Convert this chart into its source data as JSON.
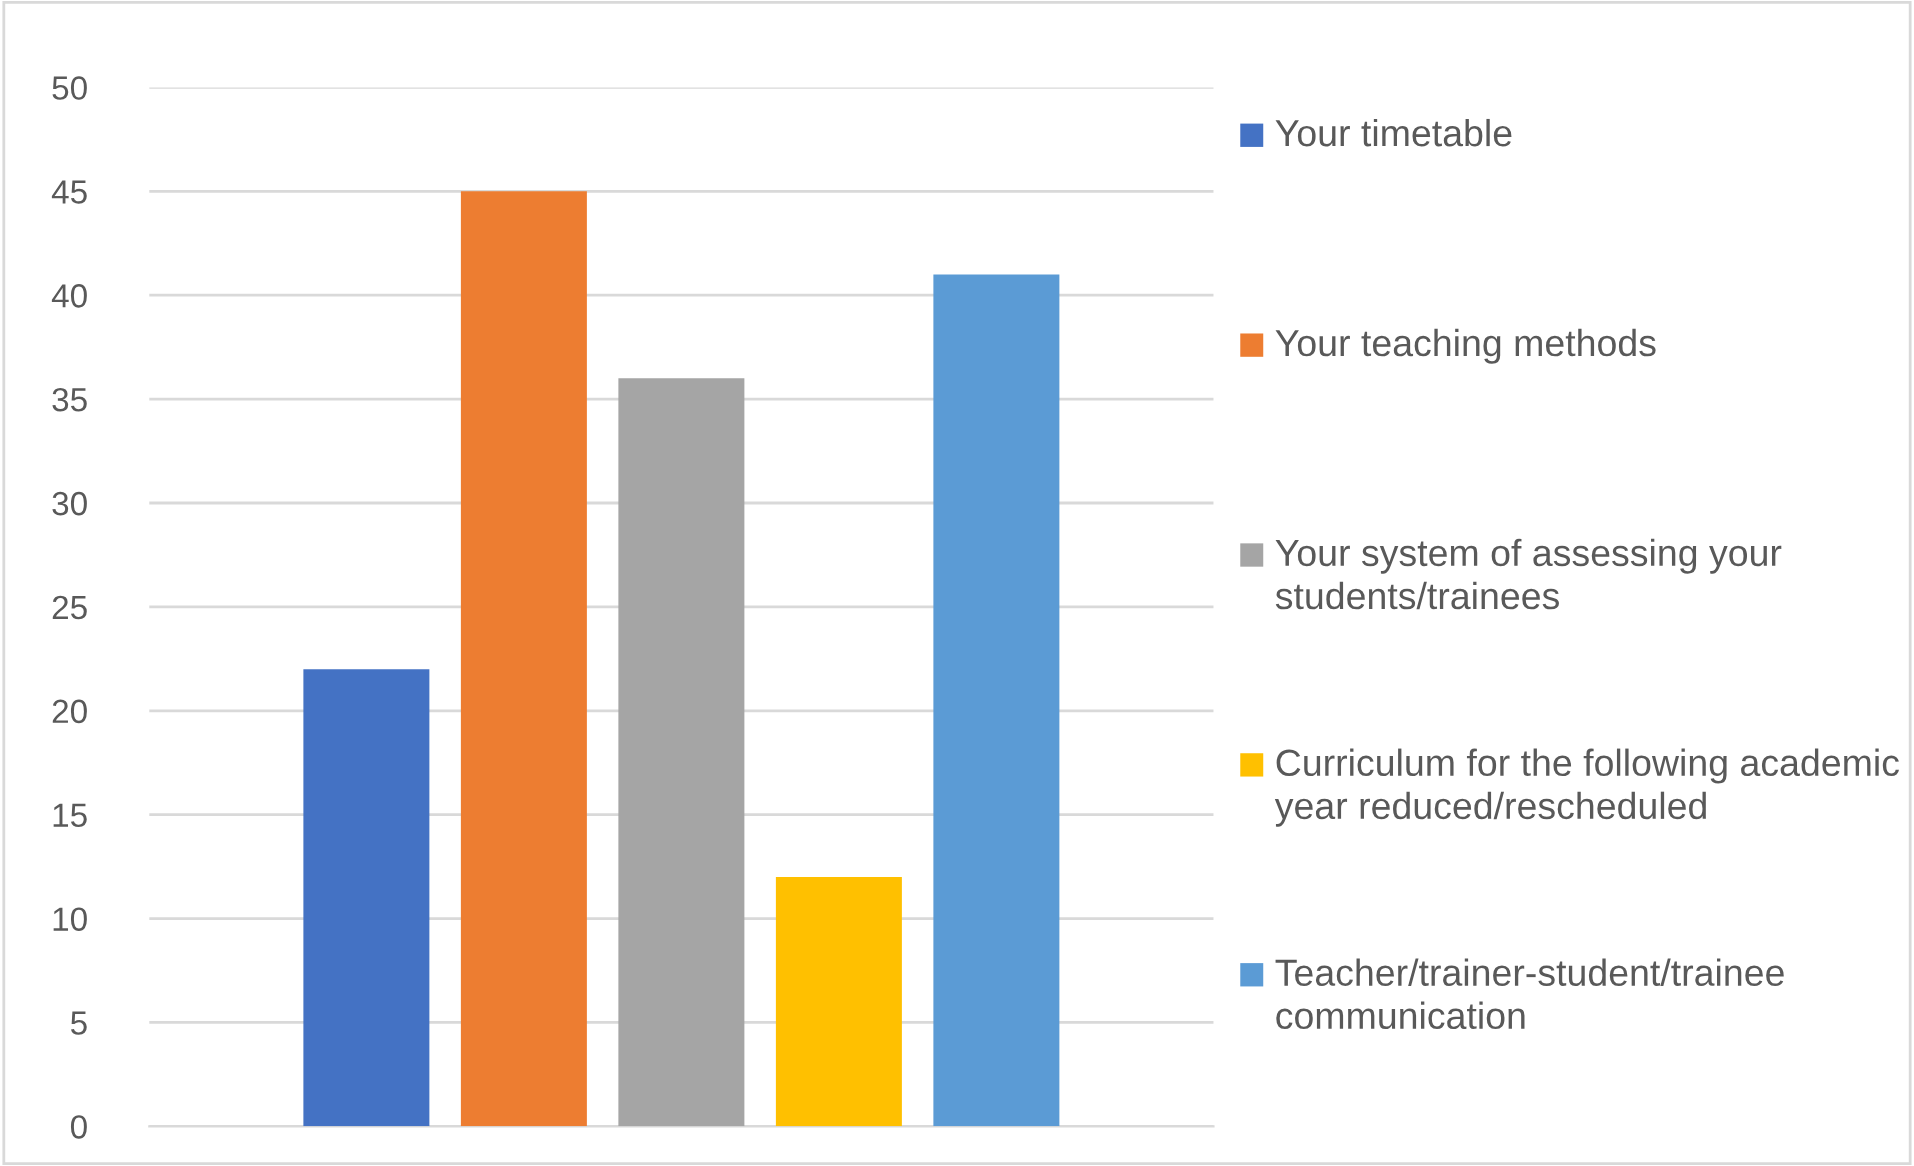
{
  "chart_data": {
    "type": "bar",
    "categories": [
      null
    ],
    "series": [
      {
        "name": "Your timetable",
        "color": "#4472c4",
        "values": [
          22
        ]
      },
      {
        "name": "Your teaching methods",
        "color": "#ed7d31",
        "values": [
          45
        ]
      },
      {
        "name": "Your system of assessing your students/trainees",
        "color": "#a5a5a5",
        "values": [
          36
        ]
      },
      {
        "name": "Curriculum for the following academic year reduced/rescheduled",
        "color": "#ffc000",
        "values": [
          12
        ]
      },
      {
        "name": "Teacher/trainer-student/trainee communication",
        "color": "#5b9bd5",
        "values": [
          41
        ]
      }
    ],
    "ylim": [
      0,
      50
    ],
    "yticks": [
      0,
      5,
      10,
      15,
      20,
      25,
      30,
      35,
      40,
      45,
      50
    ],
    "grid": "y",
    "legend": "right"
  }
}
